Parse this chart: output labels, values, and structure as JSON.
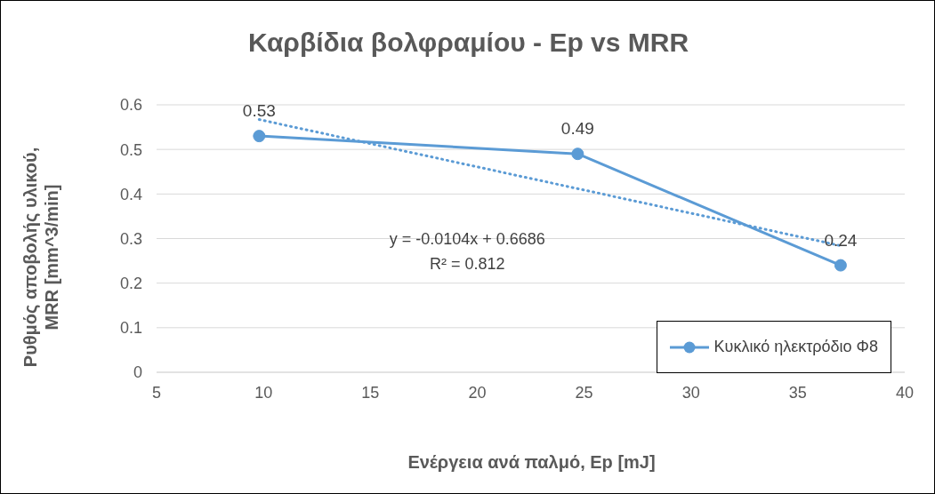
{
  "chart_data": {
    "type": "line",
    "title": "Καρβίδια βολφραμίου - Ep vs MRR",
    "xlabel": "Ενέργεια ανά παλμό, Ep [mJ]",
    "ylabel": "Ρυθμός αποβολής υλικού, MRR [mm^3/min]",
    "x": [
      9.8,
      24.7,
      37.0
    ],
    "series": [
      {
        "name": "Κυκλικό ηλεκτρόδιο Φ8",
        "color": "#5b9bd5",
        "values": [
          0.53,
          0.49,
          0.24
        ],
        "value_labels": [
          "0.53",
          "0.49",
          "0.24"
        ],
        "marker": "circle",
        "line_style": "solid"
      },
      {
        "type": "line",
        "x": [
          9.8,
          37.0
        ],
        "color": "#5b9bd5",
        "values": [
          0.567,
          0.284
        ],
        "marker": "none",
        "line_style": "dotted"
      }
    ],
    "annotations": [
      "y = -0.0104x + 0.6686",
      "R² = 0.812"
    ],
    "xlim": [
      5,
      40
    ],
    "xticks": [
      5,
      10,
      15,
      20,
      25,
      30,
      35,
      40
    ],
    "ylim": [
      0,
      0.6
    ],
    "yticks": [
      0,
      0.1,
      0.2,
      0.3,
      0.4,
      0.5,
      0.6
    ],
    "grid": "y",
    "legend": "bottom right"
  }
}
